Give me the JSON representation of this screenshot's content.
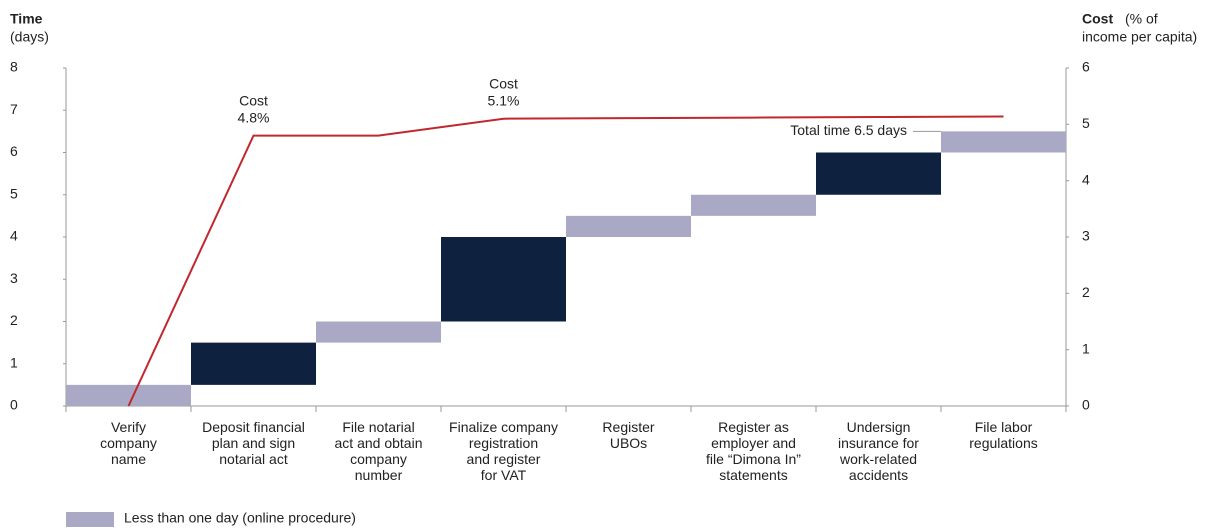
{
  "chart_data": {
    "type": "floating-bar-line",
    "y_title": "Time",
    "y_unit": "(days)",
    "y2_title": "Cost",
    "y2_unit_lines": [
      "(% of",
      "income per capita)"
    ],
    "categories": [
      "Verify\ncompany\nname",
      "Deposit financial\nplan and sign\nnotarial act",
      "File notarial\nact and obtain\ncompany\nnumber",
      "Finalize company\nregistration\nand register\nfor VAT",
      "Register\nUBOs",
      "Register as\nemployer and\nfile “Dimona In”\nstatements",
      "Undersign\ninsurance for\nwork-related\naccidents",
      "File labor\nregulations"
    ],
    "series": [
      {
        "name": "Time",
        "starts": [
          0,
          0.5,
          1.5,
          2,
          4,
          4.5,
          5,
          6
        ],
        "values": [
          0.5,
          1,
          0.5,
          2,
          0.5,
          0.5,
          1,
          0.5
        ],
        "colors": [
          "#aaa9c5",
          "#0e213f",
          "#aaa9c5",
          "#0e213f",
          "#aaa9c5",
          "#aaa9c5",
          "#0e213f",
          "#aaa9c5"
        ]
      },
      {
        "name": "Cost",
        "axis": "y2",
        "color": "#c1272d",
        "values": [
          0,
          4.8,
          4.8,
          5.1,
          5.11,
          5.12,
          5.13,
          5.14
        ]
      }
    ],
    "ylim": [
      0,
      8
    ],
    "yticks": [
      0,
      1,
      2,
      3,
      4,
      5,
      6,
      7,
      8
    ],
    "y2lim": [
      0,
      6
    ],
    "y2ticks": [
      0,
      1,
      2,
      3,
      4,
      5,
      6
    ],
    "annotations": [
      {
        "lines": [
          "Cost",
          "4.8%"
        ],
        "category": 1
      },
      {
        "lines": [
          "Cost",
          "5.1%"
        ],
        "category": 3
      },
      {
        "text": "Total time 6.5 days",
        "category": 7
      }
    ],
    "legend": {
      "label": "Less than one day (online procedure)",
      "color": "#aaa9c5"
    }
  }
}
